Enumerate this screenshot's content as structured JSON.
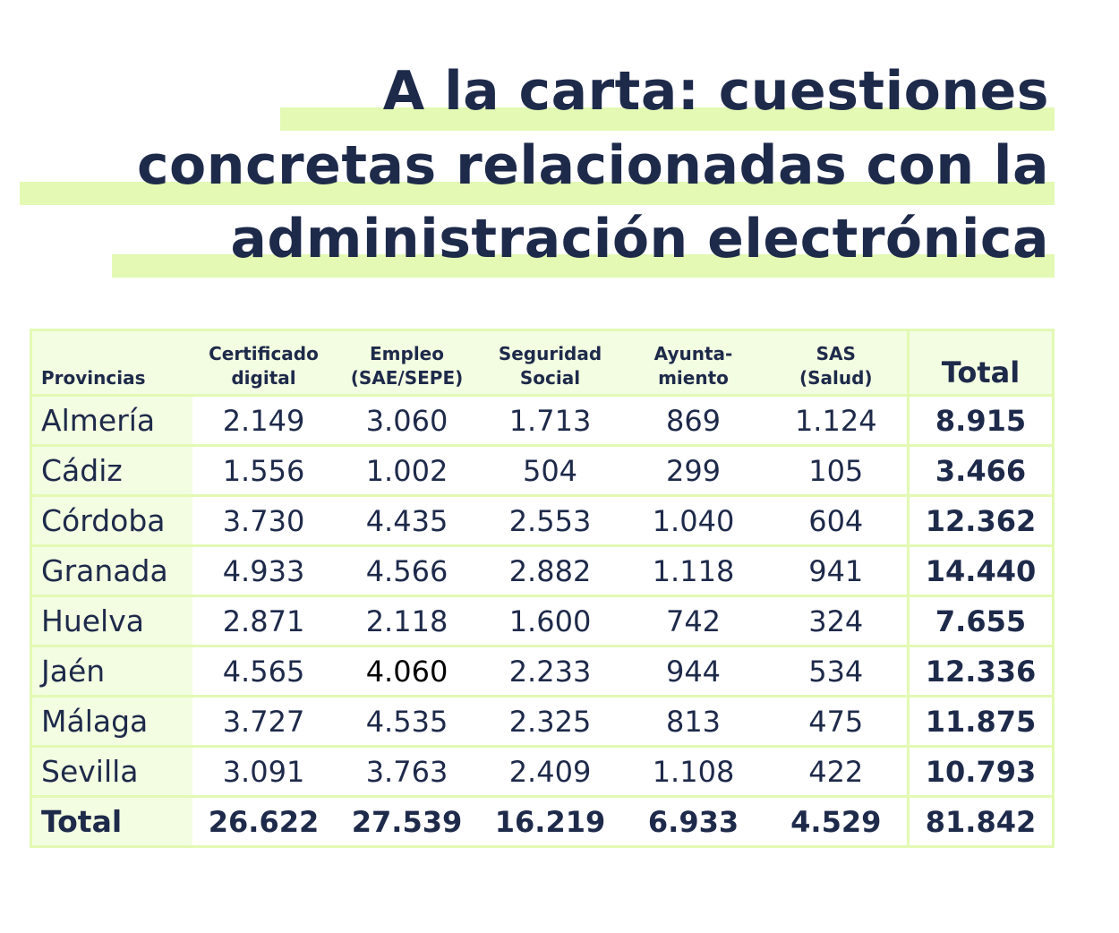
{
  "title": {
    "lines": [
      "A la carta: cuestiones",
      "concretas relacionadas con la",
      "administración electrónica"
    ]
  },
  "colors": {
    "text": "#1e2a4a",
    "highlight": "#e3f9b4",
    "cell_tint": "#f3fde2"
  },
  "chart_data": {
    "type": "table",
    "columns": [
      "Provincias",
      [
        "Certificado",
        "digital"
      ],
      [
        "Empleo",
        "(SAE/SEPE)"
      ],
      [
        "Seguridad",
        "Social"
      ],
      [
        "Ayunta-",
        "miento"
      ],
      [
        "SAS",
        "(Salud)"
      ],
      "Total"
    ],
    "rows": [
      {
        "label": "Almería",
        "values": [
          "2.149",
          "3.060",
          "1.713",
          "869",
          "1.124"
        ],
        "total": "8.915"
      },
      {
        "label": "Cádiz",
        "values": [
          "1.556",
          "1.002",
          "504",
          "299",
          "105"
        ],
        "total": "3.466"
      },
      {
        "label": "Córdoba",
        "values": [
          "3.730",
          "4.435",
          "2.553",
          "1.040",
          "604"
        ],
        "total": "12.362"
      },
      {
        "label": "Granada",
        "values": [
          "4.933",
          "4.566",
          "2.882",
          "1.118",
          "941"
        ],
        "total": "14.440"
      },
      {
        "label": "Huelva",
        "values": [
          "2.871",
          "2.118",
          "1.600",
          "742",
          "324"
        ],
        "total": "7.655"
      },
      {
        "label": "Jaén",
        "values": [
          "4.565",
          "4.060",
          "2.233",
          "944",
          "534"
        ],
        "total": "12.336"
      },
      {
        "label": "Málaga",
        "values": [
          "3.727",
          "4.535",
          "2.325",
          "813",
          "475"
        ],
        "total": "11.875"
      },
      {
        "label": "Sevilla",
        "values": [
          "3.091",
          "3.763",
          "2.409",
          "1.108",
          "422"
        ],
        "total": "10.793"
      }
    ],
    "total_row": {
      "label": "Total",
      "values": [
        "26.622",
        "27.539",
        "16.219",
        "6.933",
        "4.529"
      ],
      "total": "81.842"
    }
  }
}
